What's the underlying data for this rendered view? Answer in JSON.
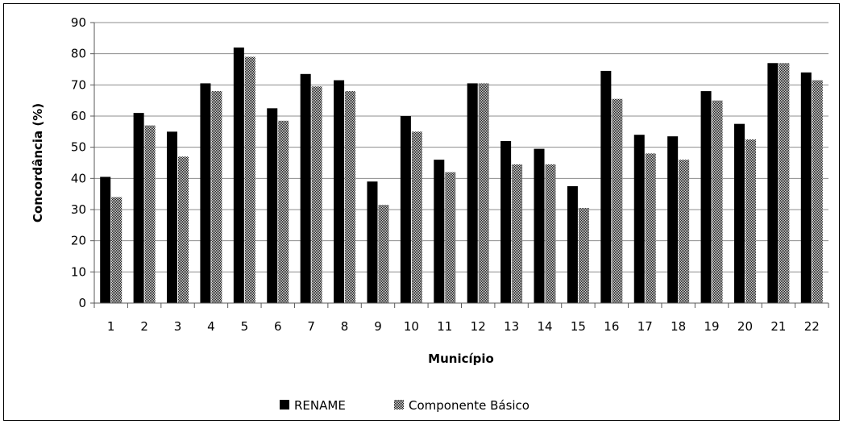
{
  "chart_data": {
    "type": "bar",
    "title": "",
    "xlabel": "Município",
    "ylabel": "Concordância (%)",
    "ylim": [
      0,
      90
    ],
    "yticks": [
      0,
      10,
      20,
      30,
      40,
      50,
      60,
      70,
      80,
      90
    ],
    "grid": "horizontal",
    "legend_placement": "bottom",
    "categories": [
      "1",
      "2",
      "3",
      "4",
      "5",
      "6",
      "7",
      "8",
      "9",
      "10",
      "11",
      "12",
      "13",
      "14",
      "15",
      "16",
      "17",
      "18",
      "19",
      "20",
      "21",
      "22"
    ],
    "series": [
      {
        "name": "RENAME",
        "color": "#000000",
        "pattern": "solid",
        "values": [
          40.5,
          61,
          55,
          70.5,
          82,
          62.5,
          73.5,
          71.5,
          39,
          60,
          46,
          70.5,
          52,
          49.5,
          37.5,
          74.5,
          54,
          53.5,
          68,
          57.5,
          77,
          74
        ]
      },
      {
        "name": "Componente Básico",
        "color": "#8a8a8a",
        "pattern": "checkered",
        "values": [
          34,
          57,
          47,
          68,
          79,
          58.5,
          69.5,
          68,
          31.5,
          55,
          42,
          70.5,
          44.5,
          44.5,
          30.5,
          65.5,
          48,
          46,
          65,
          52.5,
          77,
          71.5
        ]
      }
    ]
  }
}
